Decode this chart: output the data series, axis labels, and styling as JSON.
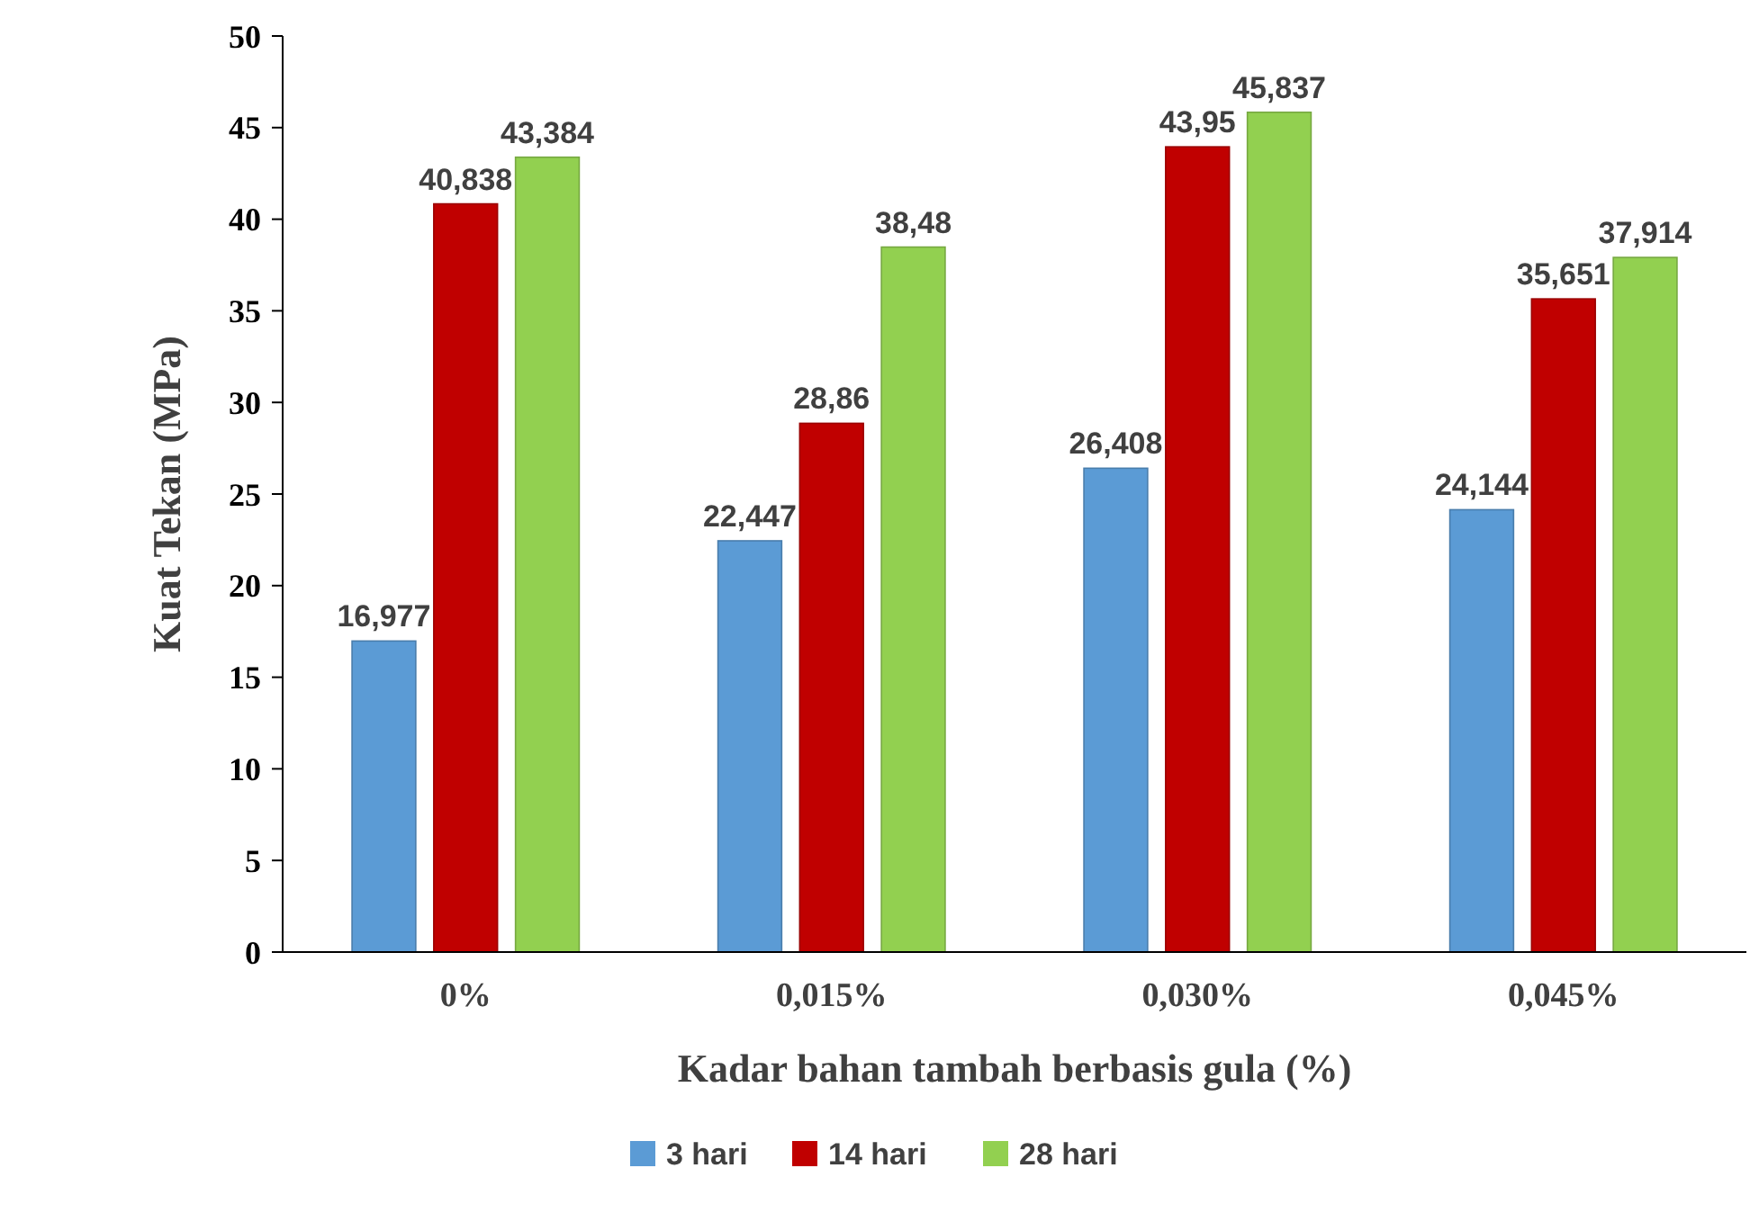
{
  "chart_data": {
    "type": "bar",
    "xlabel": "Kadar bahan tambah berbasis gula (%)",
    "ylabel": "Kuat Tekan (MPa)",
    "categories": [
      "0%",
      "0,015%",
      "0,030%",
      "0,045%"
    ],
    "series": [
      {
        "name": "3 hari",
        "color": "#5b9bd5",
        "values": [
          16.977,
          22.447,
          26.408,
          24.144
        ],
        "value_labels": [
          "16,977",
          "22,447",
          "26,408",
          "24,144"
        ]
      },
      {
        "name": "14 hari",
        "color": "#c00000",
        "values": [
          40.838,
          28.86,
          43.95,
          35.651
        ],
        "value_labels": [
          "40,838",
          "28,86",
          "43,95",
          "35,651"
        ]
      },
      {
        "name": "28 hari",
        "color": "#92d050",
        "values": [
          43.384,
          38.48,
          45.837,
          37.914
        ],
        "value_labels": [
          "43,384",
          "38,48",
          "45,837",
          "37,914"
        ]
      }
    ],
    "ylim": [
      0,
      50
    ],
    "yticks": [
      0,
      5,
      10,
      15,
      20,
      25,
      30,
      35,
      40,
      45,
      50
    ],
    "grid": false,
    "legend": "bottom"
  }
}
